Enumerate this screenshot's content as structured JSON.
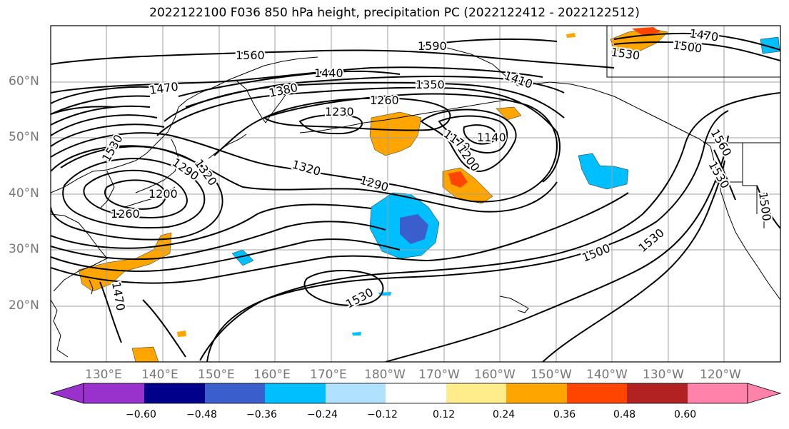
{
  "title": "2022122100 F036 850 hPa height, precipitation PC (2022122412 - 2022122512)",
  "lat_labels": [
    "60°N",
    "50°N",
    "40°N",
    "30°N",
    "20°N"
  ],
  "lon_labels": [
    "130°E",
    "140°E",
    "150°E",
    "160°E",
    "170°E",
    "180°W",
    "170°W",
    "160°W",
    "150°W",
    "140°W",
    "130°W",
    "120°W"
  ],
  "contour_labels": [
    "1560",
    "1590",
    "1470",
    "1440",
    "1380",
    "1350",
    "1260",
    "1230",
    "1410",
    "1170",
    "1140",
    "1200",
    "1320",
    "1290",
    "1200",
    "1260",
    "1320",
    "1290",
    "1470",
    "1500",
    "1530",
    "1530",
    "1530",
    "1560",
    "1530",
    "1500",
    "1470",
    "1500",
    "1530"
  ],
  "colorbar": {
    "ticks": [
      "−0.60",
      "−0.48",
      "−0.36",
      "−0.24",
      "−0.12",
      "0.12",
      "0.24",
      "0.36",
      "0.48",
      "0.60"
    ],
    "colors": [
      "#9932cc",
      "#00008b",
      "#3a5fcd",
      "#00bfff",
      "#b0e2ff",
      "#ffffff",
      "#ffec8b",
      "#ffa500",
      "#ff4500",
      "#b22222",
      "#ff82ab"
    ]
  },
  "colors": {
    "contour": "#000000",
    "grid": "#a0a0a0",
    "coast": "#000000"
  }
}
